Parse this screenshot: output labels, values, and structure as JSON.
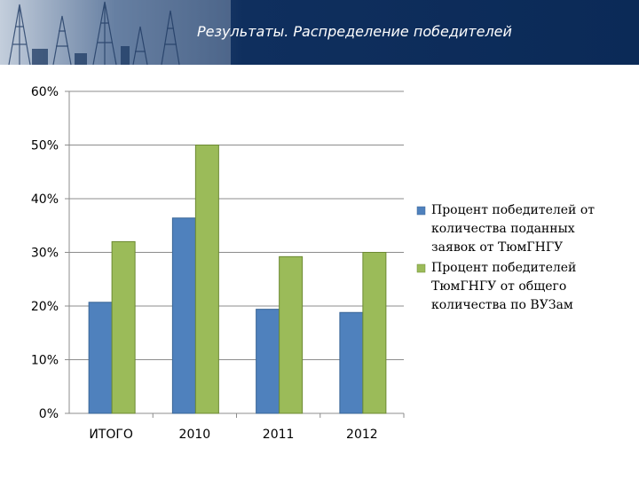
{
  "header": {
    "title": "Результаты. Распределение победителей"
  },
  "colors": {
    "series1": "#4f81bd",
    "series1_stroke": "#3a6696",
    "series2": "#9bbb59",
    "series2_stroke": "#6c8a33",
    "grid": "#8c8c8c"
  },
  "chart_data": {
    "type": "bar",
    "categories": [
      "ИТОГО",
      "2010",
      "2011",
      "2012"
    ],
    "series": [
      {
        "name": "Процент победителей от количества поданных заявок от ТюмГНГУ",
        "values": [
          20.7,
          36.4,
          19.4,
          18.8
        ]
      },
      {
        "name": "Процент победителей ТюмГНГУ от общего количества по ВУЗам",
        "values": [
          32.0,
          50.0,
          29.2,
          30.0
        ]
      }
    ],
    "yticks": [
      "0%",
      "10%",
      "20%",
      "30%",
      "40%",
      "50%",
      "60%"
    ],
    "ylim": [
      0,
      60
    ],
    "grid": true,
    "legend_position": "right",
    "legend": [
      {
        "lines": [
          "Процент победителей от",
          "количества поданных",
          "заявок от ТюмГНГУ"
        ]
      },
      {
        "lines": [
          "Процент победителей",
          "ТюмГНГУ от общего",
          "количества по ВУЗам"
        ]
      }
    ]
  }
}
